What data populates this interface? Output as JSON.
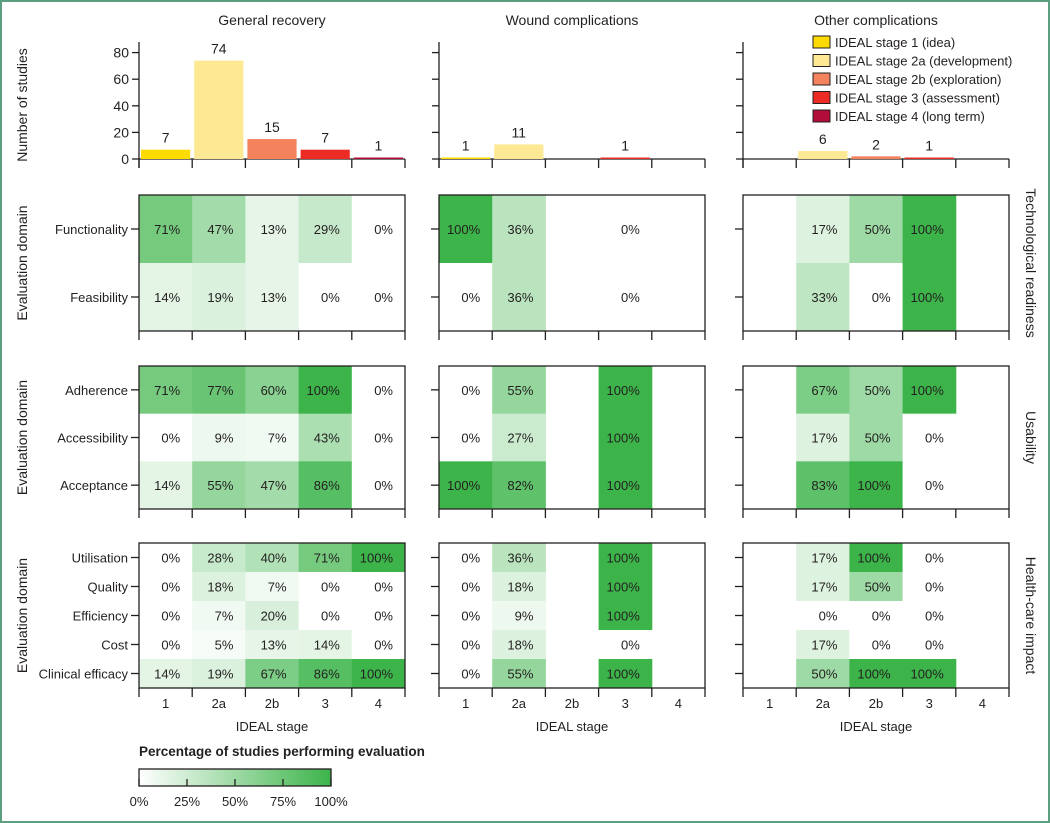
{
  "chart_data": {
    "type": "heatmap",
    "panels": [
      {
        "title": "General recovery",
        "study_counts": [
          7,
          74,
          15,
          7,
          1
        ]
      },
      {
        "title": "Wound complications",
        "study_counts": [
          1,
          11,
          0,
          1,
          0
        ]
      },
      {
        "title": "Other complications",
        "study_counts": [
          0,
          6,
          2,
          1,
          0
        ]
      }
    ],
    "stages": [
      "1",
      "2a",
      "2b",
      "3",
      "4"
    ],
    "stage_legend": [
      {
        "label": "IDEAL stage 1 (idea)",
        "color": "#fedb00"
      },
      {
        "label": "IDEAL stage 2a (development)",
        "color": "#fde994"
      },
      {
        "label": "IDEAL stage 2b (exploration)",
        "color": "#f4825d"
      },
      {
        "label": "IDEAL stage 3 (assessment)",
        "color": "#ec2c24"
      },
      {
        "label": "IDEAL stage 4 (long term)",
        "color": "#b20d3a"
      }
    ],
    "bar_ylabel": "Number of studies",
    "bar_yticks": [
      0,
      20,
      40,
      60,
      80
    ],
    "bar_ylim": [
      0,
      88
    ],
    "ylabel": "Evaluation domain",
    "xlabel": "IDEAL stage",
    "groups": [
      {
        "name": "Technological readiness",
        "domains": [
          "Functionality",
          "Feasibility"
        ],
        "values": [
          [
            [
              71,
              47,
              13,
              29,
              0
            ],
            [
              100,
              36,
              null,
              0,
              null
            ],
            [
              null,
              17,
              50,
              100,
              null
            ]
          ],
          [
            [
              14,
              19,
              13,
              0,
              0
            ],
            [
              0,
              36,
              null,
              0,
              null
            ],
            [
              null,
              33,
              0,
              100,
              null
            ]
          ]
        ]
      },
      {
        "name": "Usability",
        "domains": [
          "Adherence",
          "Accessibility",
          "Acceptance"
        ],
        "values": [
          [
            [
              71,
              77,
              60,
              100,
              0
            ],
            [
              0,
              55,
              null,
              100,
              null
            ],
            [
              null,
              67,
              50,
              100,
              null
            ]
          ],
          [
            [
              0,
              9,
              7,
              43,
              0
            ],
            [
              0,
              27,
              null,
              100,
              null
            ],
            [
              null,
              17,
              50,
              0,
              null
            ]
          ],
          [
            [
              14,
              55,
              47,
              86,
              0
            ],
            [
              100,
              82,
              null,
              100,
              null
            ],
            [
              null,
              83,
              100,
              0,
              null
            ]
          ]
        ]
      },
      {
        "name": "Health-care impact",
        "domains": [
          "Utilisation",
          "Quality",
          "Efficiency",
          "Cost",
          "Clinical efficacy"
        ],
        "values": [
          [
            [
              0,
              28,
              40,
              71,
              100
            ],
            [
              0,
              36,
              null,
              100,
              null
            ],
            [
              null,
              17,
              100,
              0,
              null
            ]
          ],
          [
            [
              0,
              18,
              7,
              0,
              0
            ],
            [
              0,
              18,
              null,
              100,
              null
            ],
            [
              null,
              17,
              50,
              0,
              null
            ]
          ],
          [
            [
              0,
              7,
              20,
              0,
              0
            ],
            [
              0,
              9,
              null,
              100,
              null
            ],
            [
              null,
              0,
              0,
              0,
              null
            ]
          ],
          [
            [
              0,
              5,
              13,
              14,
              0
            ],
            [
              0,
              18,
              null,
              0,
              null
            ],
            [
              null,
              17,
              0,
              0,
              null
            ]
          ],
          [
            [
              14,
              19,
              67,
              86,
              100
            ],
            [
              0,
              55,
              null,
              100,
              null
            ],
            [
              null,
              50,
              100,
              100,
              null
            ]
          ]
        ]
      }
    ],
    "colorbar": {
      "title": "Percentage of studies performing evaluation",
      "ticks": [
        "0%",
        "25%",
        "50%",
        "75%",
        "100%"
      ],
      "range": [
        0,
        100
      ],
      "low_color": "#ffffff",
      "high_color": "#3cb44a"
    }
  }
}
